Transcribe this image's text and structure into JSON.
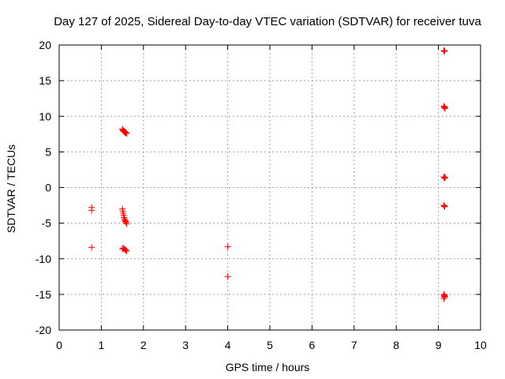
{
  "chart_data": {
    "type": "scatter",
    "title": "Day 127 of 2025, Sidereal Day-to-day VTEC variation (SDTVAR) for receiver tuva",
    "xlabel": "GPS time / hours",
    "ylabel": "SDTVAR / TECUs",
    "xlim": [
      0,
      10
    ],
    "ylim": [
      -20,
      20
    ],
    "xticks": [
      0,
      1,
      2,
      3,
      4,
      5,
      6,
      7,
      8,
      9,
      10
    ],
    "yticks": [
      -20,
      -15,
      -10,
      -5,
      0,
      5,
      10,
      15,
      20
    ],
    "grid": true,
    "marker": "+",
    "series": [
      {
        "name": "SDTVAR",
        "color": "#ff0000",
        "x": [
          0.77,
          0.77,
          0.77,
          1.5,
          1.51,
          1.52,
          1.53,
          1.54,
          1.55,
          1.56,
          1.57,
          1.58,
          1.59,
          1.6,
          1.5,
          1.51,
          1.52,
          1.53,
          1.54,
          1.55,
          1.56,
          1.57,
          1.58,
          1.59,
          1.6,
          1.5,
          1.52,
          1.54,
          1.56,
          1.58,
          1.6,
          4.0,
          4.0,
          9.13,
          9.14,
          9.15,
          9.13,
          9.14,
          9.15,
          9.16,
          9.13,
          9.14,
          9.15,
          9.16,
          9.13,
          9.14,
          9.15,
          9.13,
          9.14,
          9.15,
          9.13,
          9.14,
          9.15
        ],
        "y": [
          -2.8,
          -3.2,
          -8.4,
          8.2,
          8.1,
          8.0,
          7.9,
          7.9,
          7.8,
          7.8,
          7.7,
          7.7,
          7.6,
          7.6,
          -3.0,
          -3.3,
          -3.6,
          -3.9,
          -4.2,
          -4.4,
          -4.6,
          -4.7,
          -4.8,
          -4.9,
          -5.1,
          -8.6,
          -8.5,
          -8.6,
          -8.7,
          -8.8,
          -8.9,
          -8.3,
          -12.5,
          19.2,
          19.1,
          19.2,
          11.4,
          11.2,
          11.3,
          11.1,
          1.5,
          1.3,
          1.4,
          1.4,
          -2.5,
          -2.6,
          -2.7,
          -15.0,
          -15.4,
          -15.2,
          -15.6,
          -15.1,
          -15.3
        ]
      }
    ]
  }
}
